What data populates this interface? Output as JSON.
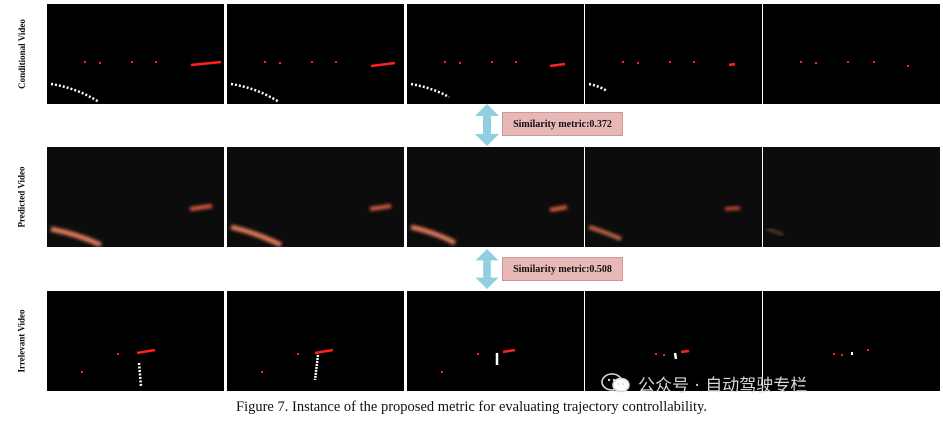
{
  "rows": [
    {
      "label": "Conditional Video"
    },
    {
      "label": "Predicted Video"
    },
    {
      "label": "Irrelevant Video"
    }
  ],
  "metrics": [
    {
      "text": "Similarity metric:0.372"
    },
    {
      "text": "Similarity metric:0.508"
    }
  ],
  "caption": "Figure 7. Instance of the proposed metric for evaluating trajectory controllability.",
  "watermark": {
    "text": "公众号 · 自动驾驶专栏",
    "icon": "wechat-icon"
  },
  "colors": {
    "trajectory_red": "#ff2020",
    "trajectory_white": "#ffffff",
    "metric_box": "#e8b8b6",
    "arrow": "#8ecfe0"
  }
}
